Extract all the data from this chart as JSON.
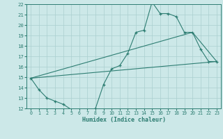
{
  "xlabel": "Humidex (Indice chaleur)",
  "xlim": [
    -0.5,
    23.5
  ],
  "ylim": [
    12,
    22
  ],
  "xticks": [
    0,
    1,
    2,
    3,
    4,
    5,
    6,
    7,
    8,
    9,
    10,
    11,
    12,
    13,
    14,
    15,
    16,
    17,
    18,
    19,
    20,
    21,
    22,
    23
  ],
  "yticks": [
    12,
    13,
    14,
    15,
    16,
    17,
    18,
    19,
    20,
    21,
    22
  ],
  "line_color": "#2d7d72",
  "bg_color": "#cce8e8",
  "grid_color": "#aacfcf",
  "line1_x": [
    0,
    1,
    2,
    3,
    4,
    5,
    6,
    7,
    8,
    9,
    10,
    11,
    12,
    13,
    14,
    15,
    16,
    17,
    18,
    19,
    20,
    21,
    22,
    23
  ],
  "line1_y": [
    14.9,
    13.8,
    13.0,
    12.7,
    12.4,
    11.9,
    11.8,
    11.7,
    12.0,
    14.3,
    15.8,
    16.1,
    17.3,
    19.3,
    19.5,
    22.2,
    21.1,
    21.1,
    20.8,
    19.3,
    19.3,
    17.7,
    16.5,
    16.5
  ],
  "line2_x": [
    0,
    23
  ],
  "line2_y": [
    14.9,
    16.5
  ],
  "line3_x": [
    0,
    20,
    23
  ],
  "line3_y": [
    14.9,
    19.3,
    16.5
  ]
}
